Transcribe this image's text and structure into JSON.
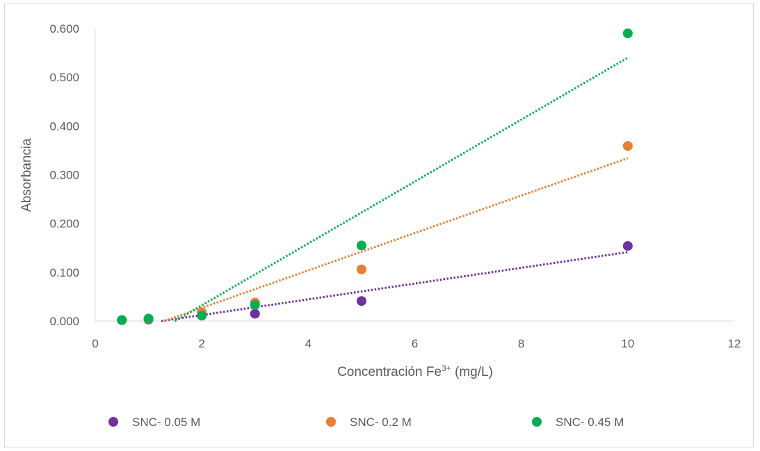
{
  "chart_data": {
    "type": "scatter",
    "title": "",
    "xlabel_main": "Concentración Fe",
    "xlabel_sup": "3+",
    "xlabel_unit": " (mg/L)",
    "ylabel": "Absorbancia",
    "xlim": [
      0,
      12
    ],
    "ylim": [
      0,
      0.6
    ],
    "xticks": [
      "0",
      "2",
      "4",
      "6",
      "8",
      "10",
      "12"
    ],
    "yticks": [
      "0.000",
      "0.100",
      "0.200",
      "0.300",
      "0.400",
      "0.500",
      "0.600"
    ],
    "grid": false,
    "legend_position": "bottom",
    "trendline": "linear, dotted",
    "series": [
      {
        "name": "SNC- 0.05 M",
        "color": "#7030a0",
        "x": [
          0.5,
          1,
          2,
          3,
          5,
          10
        ],
        "y": [
          0.002,
          0.003,
          0.012,
          0.015,
          0.041,
          0.154
        ]
      },
      {
        "name": "SNC- 0.2 M",
        "color": "#ed7d31",
        "x": [
          0.5,
          1,
          2,
          3,
          5,
          10
        ],
        "y": [
          0.002,
          0.004,
          0.018,
          0.038,
          0.106,
          0.359
        ]
      },
      {
        "name": "SNC- 0.45 M",
        "color": "#00b050",
        "x": [
          0.5,
          1,
          2,
          3,
          5,
          10
        ],
        "y": [
          0.002,
          0.005,
          0.011,
          0.033,
          0.155,
          0.59
        ]
      }
    ]
  }
}
